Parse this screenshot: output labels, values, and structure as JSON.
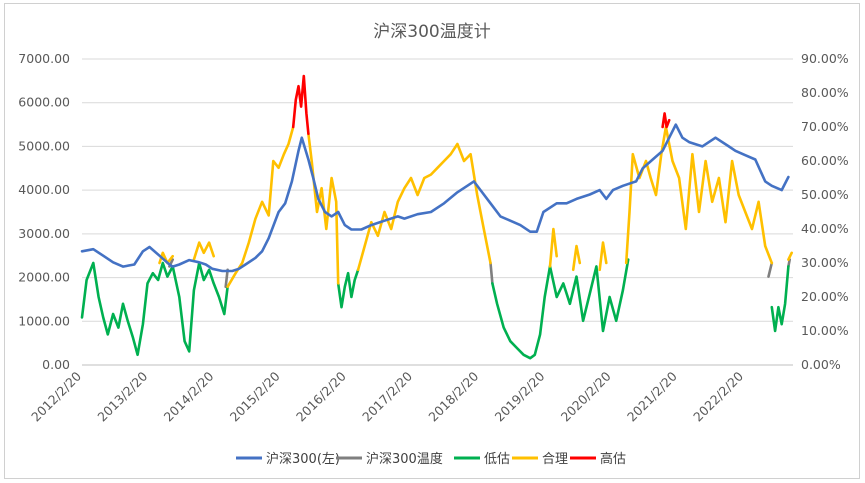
{
  "chart_data": {
    "type": "line",
    "title": "沪深300温度计",
    "legend_position": "bottom",
    "grid": true,
    "x_ticks": [
      "2012/2/20",
      "2013/2/20",
      "2014/2/20",
      "2015/2/20",
      "2016/2/20",
      "2017/2/20",
      "2018/2/20",
      "2019/2/20",
      "2020/2/20",
      "2021/2/20",
      "2022/2/20"
    ],
    "y_left": {
      "min": 0,
      "max": 7000,
      "step": 1000,
      "ticks": [
        "0.00",
        "1000.00",
        "2000.00",
        "3000.00",
        "4000.00",
        "5000.00",
        "6000.00",
        "7000.00"
      ]
    },
    "y_right": {
      "min": 0,
      "max": 0.9,
      "step": 0.1,
      "ticks": [
        "0.00%",
        "10.00%",
        "20.00%",
        "30.00%",
        "40.00%",
        "50.00%",
        "60.00%",
        "70.00%",
        "80.00%",
        "90.00%"
      ]
    },
    "series": [
      {
        "name": "沪深300(左)",
        "axis": "left",
        "color": "#4472C4",
        "x": [
          2012.13,
          2012.3,
          2012.45,
          2012.6,
          2012.75,
          2012.92,
          2013.05,
          2013.15,
          2013.3,
          2013.45,
          2013.5,
          2013.6,
          2013.75,
          2013.9,
          2014.0,
          2014.1,
          2014.25,
          2014.4,
          2014.5,
          2014.6,
          2014.75,
          2014.85,
          2014.95,
          2015.1,
          2015.2,
          2015.3,
          2015.4,
          2015.45,
          2015.55,
          2015.62,
          2015.7,
          2015.8,
          2015.9,
          2016.0,
          2016.1,
          2016.2,
          2016.35,
          2016.5,
          2016.7,
          2016.9,
          2017.0,
          2017.2,
          2017.4,
          2017.6,
          2017.8,
          2017.95,
          2018.05,
          2018.15,
          2018.3,
          2018.45,
          2018.6,
          2018.75,
          2018.9,
          2019.0,
          2019.1,
          2019.3,
          2019.45,
          2019.6,
          2019.8,
          2019.95,
          2020.05,
          2020.15,
          2020.3,
          2020.5,
          2020.6,
          2020.75,
          2020.9,
          2021.0,
          2021.1,
          2021.2,
          2021.3,
          2021.5,
          2021.7,
          2021.9,
          2022.0,
          2022.15,
          2022.3,
          2022.45,
          2022.55,
          2022.7,
          2022.8
        ],
        "values": [
          2600,
          2650,
          2500,
          2350,
          2250,
          2300,
          2600,
          2700,
          2500,
          2300,
          2250,
          2300,
          2400,
          2350,
          2300,
          2200,
          2150,
          2150,
          2200,
          2300,
          2450,
          2600,
          2900,
          3500,
          3700,
          4200,
          4900,
          5200,
          4700,
          4300,
          3800,
          3500,
          3400,
          3500,
          3200,
          3100,
          3100,
          3200,
          3300,
          3400,
          3350,
          3450,
          3500,
          3700,
          3950,
          4100,
          4200,
          4000,
          3700,
          3400,
          3300,
          3200,
          3050,
          3050,
          3500,
          3700,
          3700,
          3800,
          3900,
          4000,
          3800,
          4000,
          4100,
          4200,
          4500,
          4700,
          4900,
          5200,
          5500,
          5200,
          5100,
          5000,
          5200,
          5000,
          4900,
          4800,
          4700,
          4200,
          4100,
          4000,
          4300
        ]
      },
      {
        "name": "沪深300温度",
        "axis": "right",
        "color": "#7F7F7F",
        "x": [
          2013.45,
          2013.5,
          2014.3,
          2014.33,
          2018.3,
          2018.33,
          2022.5,
          2022.55,
          2022.8,
          2022.82
        ],
        "values": [
          0.29,
          0.31,
          0.23,
          0.28,
          0.3,
          0.24,
          0.26,
          0.3,
          0.29,
          0.31
        ]
      },
      {
        "name": "低估",
        "axis": "right",
        "color": "#00B050",
        "segments": [
          {
            "x": [
              2012.13,
              2012.2,
              2012.3,
              2012.38,
              2012.45,
              2012.52,
              2012.6,
              2012.68,
              2012.75,
              2012.82,
              2012.9,
              2012.97,
              2013.05,
              2013.12,
              2013.2,
              2013.28,
              2013.35,
              2013.42,
              2013.5
            ],
            "values": [
              0.14,
              0.25,
              0.3,
              0.2,
              0.14,
              0.09,
              0.15,
              0.11,
              0.18,
              0.13,
              0.08,
              0.03,
              0.12,
              0.24,
              0.27,
              0.25,
              0.3,
              0.26,
              0.29
            ]
          },
          {
            "x": [
              2013.5,
              2013.6,
              2013.68,
              2013.75,
              2013.82,
              2013.9,
              2013.97,
              2014.05,
              2014.12,
              2014.2,
              2014.28,
              2014.33
            ],
            "values": [
              0.29,
              0.2,
              0.07,
              0.04,
              0.22,
              0.3,
              0.25,
              0.28,
              0.24,
              0.2,
              0.15,
              0.23
            ]
          },
          {
            "x": [
              2016.0,
              2016.05,
              2016.1,
              2016.15,
              2016.2,
              2016.25,
              2016.3
            ],
            "values": [
              0.24,
              0.17,
              0.23,
              0.27,
              0.2,
              0.25,
              0.28
            ]
          },
          {
            "x": [
              2018.33,
              2018.4,
              2018.5,
              2018.6,
              2018.7,
              2018.8,
              2018.9,
              2018.97,
              2019.05,
              2019.12,
              2019.2
            ],
            "values": [
              0.24,
              0.18,
              0.11,
              0.07,
              0.05,
              0.03,
              0.02,
              0.03,
              0.09,
              0.2,
              0.29
            ]
          },
          {
            "x": [
              2019.2,
              2019.3,
              2019.4,
              2019.5,
              2019.6,
              2019.7,
              2019.8,
              2019.9,
              2020.0,
              2020.1,
              2020.2,
              2020.3,
              2020.38
            ],
            "values": [
              0.29,
              0.2,
              0.24,
              0.18,
              0.26,
              0.13,
              0.21,
              0.29,
              0.1,
              0.2,
              0.13,
              0.22,
              0.31
            ]
          },
          {
            "x": [
              2022.55,
              2022.6,
              2022.65,
              2022.7,
              2022.75,
              2022.8
            ],
            "values": [
              0.17,
              0.1,
              0.17,
              0.12,
              0.18,
              0.29
            ]
          }
        ]
      },
      {
        "name": "合理",
        "axis": "right",
        "color": "#FFC000",
        "segments": [
          {
            "x": [
              2013.3,
              2013.35,
              2013.42,
              2013.5
            ],
            "values": [
              0.3,
              0.33,
              0.3,
              0.32
            ]
          },
          {
            "x": [
              2013.82,
              2013.9,
              2013.97,
              2014.05,
              2014.12
            ],
            "values": [
              0.31,
              0.36,
              0.33,
              0.36,
              0.32
            ]
          },
          {
            "x": [
              2014.33,
              2014.45,
              2014.55,
              2014.65,
              2014.75,
              2014.85,
              2014.95,
              2015.02,
              2015.1,
              2015.18,
              2015.25,
              2015.32
            ],
            "values": [
              0.23,
              0.27,
              0.3,
              0.36,
              0.43,
              0.48,
              0.44,
              0.6,
              0.58,
              0.62,
              0.65,
              0.7
            ]
          },
          {
            "x": [
              2015.55,
              2015.6,
              2015.68,
              2015.75,
              2015.82,
              2015.9,
              2015.97,
              2016.0
            ],
            "values": [
              0.68,
              0.6,
              0.45,
              0.52,
              0.4,
              0.55,
              0.48,
              0.24
            ]
          },
          {
            "x": [
              2016.3,
              2016.4,
              2016.5,
              2016.6,
              2016.7,
              2016.8,
              2016.9,
              2017.0,
              2017.1,
              2017.2,
              2017.3,
              2017.4,
              2017.5,
              2017.6,
              2017.7,
              2017.8,
              2017.9,
              2018.0,
              2018.1,
              2018.2,
              2018.3
            ],
            "values": [
              0.28,
              0.35,
              0.42,
              0.38,
              0.45,
              0.4,
              0.48,
              0.52,
              0.55,
              0.5,
              0.55,
              0.56,
              0.58,
              0.6,
              0.62,
              0.65,
              0.6,
              0.62,
              0.5,
              0.4,
              0.3
            ]
          },
          {
            "x": [
              2019.2,
              2019.25,
              2019.3
            ],
            "values": [
              0.29,
              0.4,
              0.32
            ]
          },
          {
            "x": [
              2019.55,
              2019.6,
              2019.65
            ],
            "values": [
              0.28,
              0.35,
              0.3
            ]
          },
          {
            "x": [
              2019.95,
              2020.0,
              2020.05
            ],
            "values": [
              0.28,
              0.36,
              0.3
            ]
          },
          {
            "x": [
              2020.35,
              2020.4,
              2020.45,
              2020.55,
              2020.65,
              2020.72,
              2020.8,
              2020.88,
              2020.95,
              2021.05,
              2021.15,
              2021.25,
              2021.35,
              2021.45,
              2021.55,
              2021.65,
              2021.75,
              2021.85,
              2021.95,
              2022.05,
              2022.15,
              2022.25,
              2022.35,
              2022.45,
              2022.55
            ],
            "values": [
              0.3,
              0.45,
              0.62,
              0.55,
              0.6,
              0.55,
              0.5,
              0.62,
              0.7,
              0.6,
              0.55,
              0.4,
              0.62,
              0.45,
              0.6,
              0.48,
              0.55,
              0.42,
              0.6,
              0.5,
              0.45,
              0.4,
              0.48,
              0.35,
              0.3
            ]
          },
          {
            "x": [
              2022.8,
              2022.85
            ],
            "values": [
              0.31,
              0.33
            ]
          }
        ]
      },
      {
        "name": "高估",
        "axis": "right",
        "color": "#FF0000",
        "segments": [
          {
            "x": [
              2015.32,
              2015.36,
              2015.4,
              2015.44,
              2015.48,
              2015.52,
              2015.55
            ],
            "values": [
              0.7,
              0.78,
              0.82,
              0.76,
              0.85,
              0.74,
              0.68
            ]
          },
          {
            "x": [
              2020.9,
              2020.93,
              2020.96,
              2021.0
            ],
            "values": [
              0.7,
              0.74,
              0.7,
              0.72
            ]
          }
        ]
      }
    ]
  }
}
